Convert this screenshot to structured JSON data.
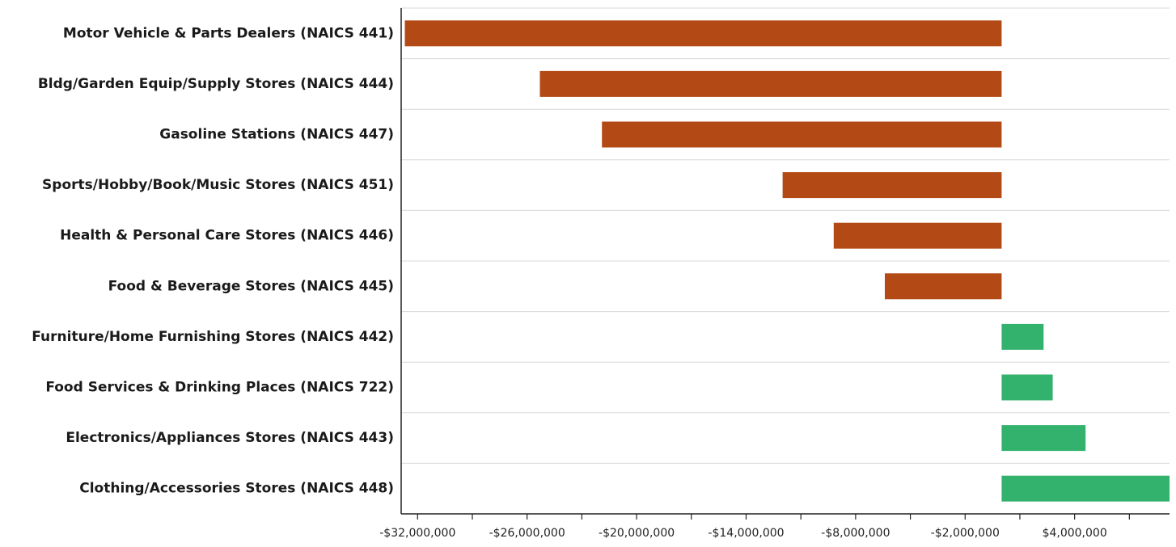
{
  "chart_data": {
    "type": "bar",
    "orientation": "horizontal",
    "categories": [
      "Motor Vehicle & Parts Dealers (NAICS 441)",
      "Bldg/Garden Equip/Supply Stores (NAICS 444)",
      "Gasoline Stations (NAICS 447)",
      "Sports/Hobby/Book/Music Stores (NAICS 451)",
      "Health & Personal Care Stores (NAICS 446)",
      "Food & Beverage Stores (NAICS 445)",
      "Furniture/Home Furnishing Stores (NAICS 442)",
      "Food Services & Drinking Places (NAICS 722)",
      "Electronics/Appliances Stores (NAICS 443)",
      "Clothing/Accessories Stores (NAICS 448)"
    ],
    "values": [
      -32700000,
      -25300000,
      -21900000,
      -12000000,
      -9200000,
      -6400000,
      2300000,
      2800000,
      4600000,
      9200000
    ],
    "xlim": [
      -32900000,
      9200000
    ],
    "xticks": [
      -32000000,
      -29000000,
      -26000000,
      -23000000,
      -20000000,
      -17000000,
      -14000000,
      -11000000,
      -8000000,
      -5000000,
      -2000000,
      1000000,
      4000000,
      7000000
    ],
    "xtick_labels": [
      "-$32,000,000",
      "",
      "-$26,000,000",
      "",
      "-$20,000,000",
      "",
      "-$14,000,000",
      "",
      "-$8,000,000",
      "",
      "-$2,000,000",
      "",
      "$4,000,000",
      ""
    ],
    "grid": true,
    "legend": "none",
    "colors": {
      "negative": "#b34a16",
      "positive": "#33b26e",
      "grid": "#d8d8d8",
      "axis": "#222222"
    }
  }
}
